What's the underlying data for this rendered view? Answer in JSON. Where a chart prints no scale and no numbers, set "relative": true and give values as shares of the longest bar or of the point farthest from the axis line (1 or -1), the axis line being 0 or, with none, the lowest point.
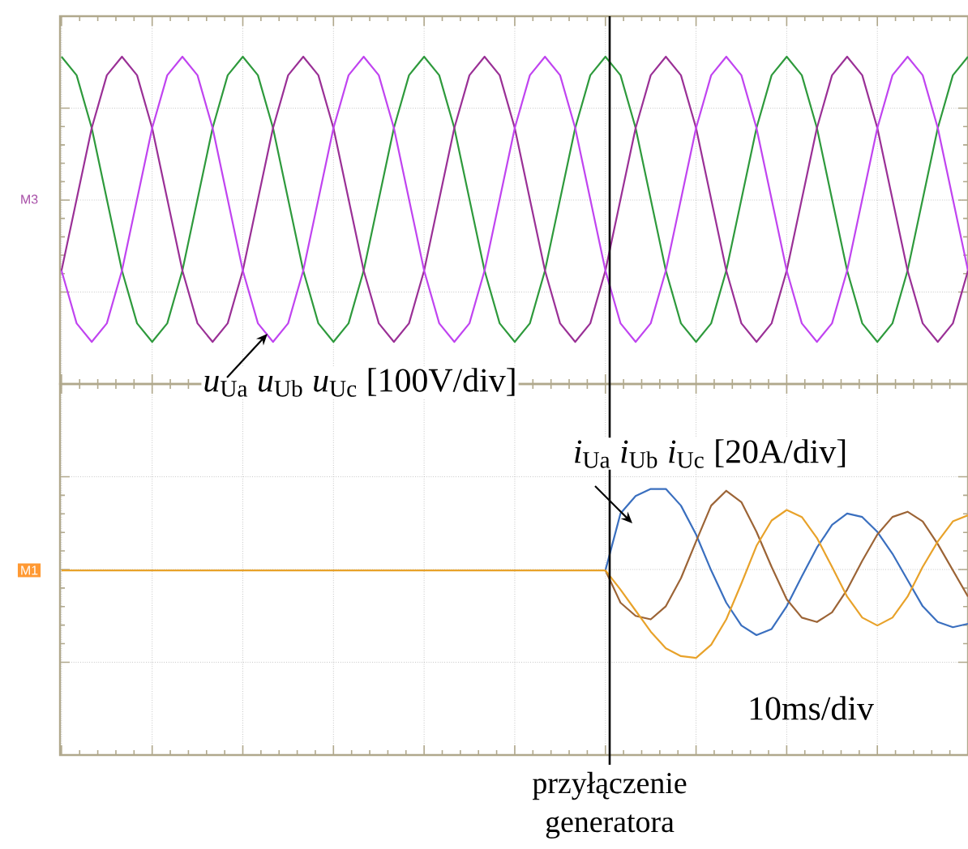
{
  "chart_data": [
    {
      "type": "line",
      "relative": true,
      "grid": true,
      "tick_labels": false,
      "categories": [
        null,
        null,
        null,
        null,
        null,
        null,
        null,
        null,
        null,
        null,
        null,
        null,
        null,
        null,
        null,
        null,
        null,
        null,
        null,
        null,
        null,
        null,
        null,
        null,
        null,
        null,
        null,
        null,
        null,
        null,
        null,
        null,
        null,
        null,
        null,
        null,
        null,
        null,
        null,
        null,
        null,
        null,
        null,
        null,
        null,
        null,
        null,
        null,
        null,
        null,
        null,
        null,
        null,
        null,
        null,
        null,
        null,
        null,
        null,
        null,
        null
      ],
      "series": [
        {
          "color": "#2e9a3c",
          "values": [
            1,
            0.87,
            0.5,
            0,
            -0.5,
            -0.87,
            -1,
            -0.87,
            -0.5,
            0,
            0.5,
            0.87,
            1,
            0.87,
            0.5,
            0,
            -0.5,
            -0.87,
            -1,
            -0.87,
            -0.5,
            0,
            0.5,
            0.87,
            1,
            0.87,
            0.5,
            0,
            -0.5,
            -0.87,
            -1,
            -0.87,
            -0.5,
            0,
            0.5,
            0.87,
            1,
            0.87,
            0.5,
            0,
            -0.5,
            -0.87,
            -1,
            -0.87,
            -0.5,
            0,
            0.5,
            0.87,
            1,
            0.87,
            0.5,
            0,
            -0.5,
            -0.87,
            -1,
            -0.87,
            -0.5,
            0,
            0.5,
            0.87,
            1
          ]
        },
        {
          "color": "#9a3096",
          "values": [
            -0.5,
            0,
            0.5,
            0.87,
            1,
            0.87,
            0.5,
            0,
            -0.5,
            -0.87,
            -1,
            -0.87,
            -0.5,
            0,
            0.5,
            0.87,
            1,
            0.87,
            0.5,
            0,
            -0.5,
            -0.87,
            -1,
            -0.87,
            -0.5,
            0,
            0.5,
            0.87,
            1,
            0.87,
            0.5,
            0,
            -0.5,
            -0.87,
            -1,
            -0.87,
            -0.5,
            0,
            0.5,
            0.87,
            1,
            0.87,
            0.5,
            0,
            -0.5,
            -0.87,
            -1,
            -0.87,
            -0.5,
            0,
            0.5,
            0.87,
            1,
            0.87,
            0.5,
            0,
            -0.5,
            -0.87,
            -1,
            -0.87,
            -0.5
          ]
        },
        {
          "color": "#c044f0",
          "values": [
            -0.5,
            -0.87,
            -1,
            -0.87,
            -0.5,
            0,
            0.5,
            0.87,
            1,
            0.87,
            0.5,
            0,
            -0.5,
            -0.87,
            -1,
            -0.87,
            -0.5,
            0,
            0.5,
            0.87,
            1,
            0.87,
            0.5,
            0,
            -0.5,
            -0.87,
            -1,
            -0.87,
            -0.5,
            0,
            0.5,
            0.87,
            1,
            0.87,
            0.5,
            0,
            -0.5,
            -0.87,
            -1,
            -0.87,
            -0.5,
            0,
            0.5,
            0.87,
            1,
            0.87,
            0.5,
            0,
            -0.5,
            -0.87,
            -1,
            -0.87,
            -0.5,
            0,
            0.5,
            0.87,
            1,
            0.87,
            0.5,
            0,
            -0.5
          ]
        }
      ],
      "annotations": [
        "*u*$_{Ua}$ *u*$_{Ub}$ *u*$_{Uc}$ [100V/div]",
        "M3"
      ]
    },
    {
      "type": "line",
      "relative": true,
      "grid": true,
      "tick_labels": false,
      "categories": [
        null,
        null,
        null,
        null,
        null,
        null,
        null,
        null,
        null,
        null,
        null,
        null,
        null,
        null,
        null,
        null,
        null,
        null,
        null,
        null,
        null,
        null,
        null,
        null,
        null,
        null,
        null,
        null,
        null,
        null,
        null,
        null,
        null,
        null,
        null,
        null,
        null,
        null,
        null,
        null,
        null,
        null,
        null,
        null,
        null,
        null,
        null,
        null,
        null,
        null,
        null,
        null,
        null,
        null,
        null,
        null,
        null,
        null,
        null,
        null,
        null
      ],
      "series": [
        {
          "color": "#3a6fbf",
          "values": [
            null,
            null,
            null,
            null,
            null,
            null,
            null,
            null,
            null,
            null,
            null,
            null,
            null,
            null,
            null,
            null,
            null,
            null,
            null,
            null,
            null,
            null,
            null,
            null,
            null,
            null,
            null,
            null,
            null,
            null,
            null,
            null,
            null,
            null,
            null,
            null,
            0,
            0.65,
            0.85,
            0.93,
            0.93,
            0.74,
            0.41,
            0,
            -0.37,
            -0.63,
            -0.74,
            -0.67,
            -0.41,
            -0.07,
            0.26,
            0.52,
            0.65,
            0.61,
            0.44,
            0.19,
            -0.11,
            -0.41,
            -0.59,
            -0.65,
            -0.61
          ]
        },
        {
          "color": "#9c6436",
          "values": [
            null,
            null,
            null,
            null,
            null,
            null,
            null,
            null,
            null,
            null,
            null,
            null,
            null,
            null,
            null,
            null,
            null,
            null,
            null,
            null,
            null,
            null,
            null,
            null,
            null,
            null,
            null,
            null,
            null,
            null,
            null,
            null,
            null,
            null,
            null,
            null,
            0,
            -0.37,
            -0.52,
            -0.56,
            -0.41,
            -0.09,
            0.33,
            0.74,
            0.91,
            0.78,
            0.44,
            0.04,
            -0.33,
            -0.54,
            -0.59,
            -0.48,
            -0.22,
            0.11,
            0.41,
            0.61,
            0.67,
            0.56,
            0.3,
            0,
            -0.3
          ]
        },
        {
          "color": "#e8a22a",
          "values": [
            0,
            0,
            0,
            0,
            0,
            0,
            0,
            0,
            0,
            0,
            0,
            0,
            0,
            0,
            0,
            0,
            0,
            0,
            0,
            0,
            0,
            0,
            0,
            0,
            0,
            0,
            0,
            0,
            0,
            0,
            0,
            0,
            0,
            0,
            0,
            0,
            0,
            -0.22,
            -0.46,
            -0.7,
            -0.89,
            -0.98,
            -1,
            -0.85,
            -0.56,
            -0.15,
            0.28,
            0.57,
            0.69,
            0.61,
            0.37,
            0.04,
            -0.3,
            -0.54,
            -0.63,
            -0.54,
            -0.3,
            0.04,
            0.33,
            0.56,
            0.63
          ]
        }
      ],
      "annotations": [
        "*i*$_{Ua}$ *i*$_{Ub}$ *i*$_{Uc}$ [20A/div]",
        "10ms/div",
        "M1",
        "przyłączenie generatora"
      ]
    }
  ]
}
